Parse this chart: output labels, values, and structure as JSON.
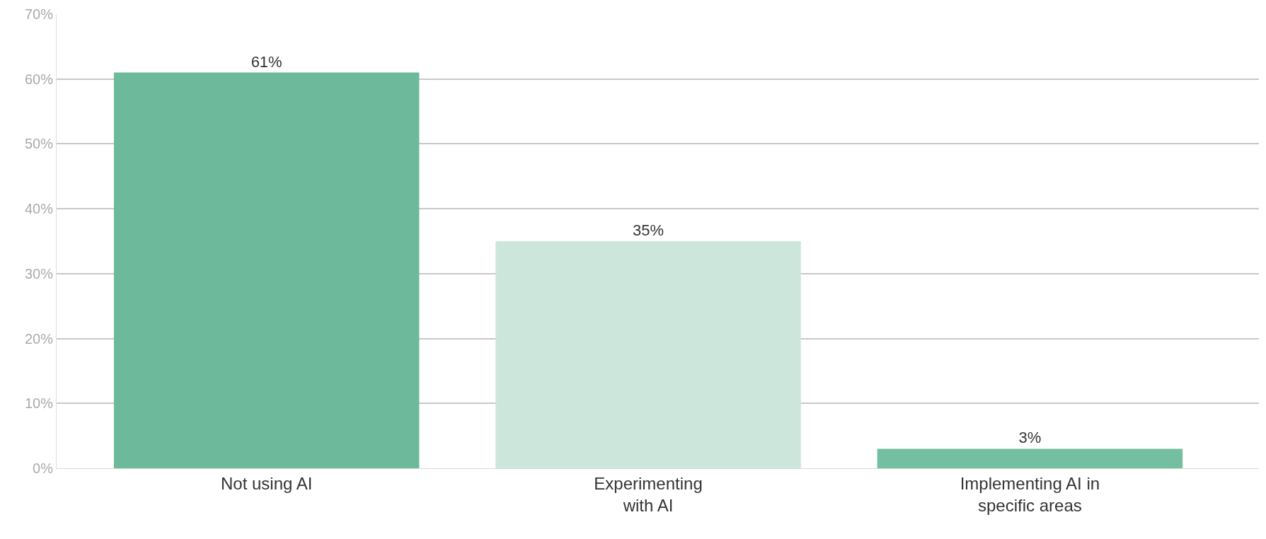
{
  "chart_data": {
    "type": "bar",
    "categories": [
      "Not using AI",
      "Experimenting\nwith AI",
      "Implementing AI in\nspecific areas"
    ],
    "values": [
      61,
      35,
      3
    ],
    "colors": [
      "#6cb99c",
      "#cde6dc",
      "#74bea2"
    ],
    "ylim": [
      0,
      70
    ],
    "yticks": [
      {
        "value": 0,
        "label": "0%"
      },
      {
        "value": 10,
        "label": "10%"
      },
      {
        "value": 20,
        "label": "20%"
      },
      {
        "value": 30,
        "label": "30%"
      },
      {
        "value": 40,
        "label": "40%"
      },
      {
        "value": 50,
        "label": "50%"
      },
      {
        "value": 60,
        "label": "60%"
      },
      {
        "value": 70,
        "label": "70%"
      }
    ],
    "value_labels": [
      "61%",
      "35%",
      "3%"
    ],
    "grid": "y"
  }
}
